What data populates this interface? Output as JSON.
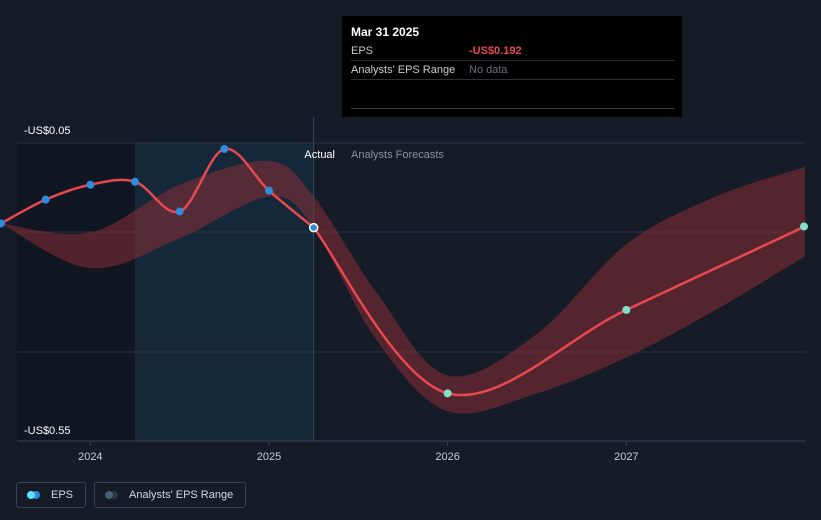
{
  "tooltip": {
    "date": "Mar 31 2025",
    "rows": [
      {
        "label": "EPS",
        "value": "-US$0.192"
      },
      {
        "label": "Analysts' EPS Range",
        "value": "No data"
      }
    ]
  },
  "legend": {
    "items": [
      {
        "label": "EPS",
        "color_a": "#5ee0ff",
        "color_b": "#2f8bdc"
      },
      {
        "label": "Analysts' EPS Range",
        "color_a": "#4a5f73",
        "color_b": "#2a3a4a"
      }
    ]
  },
  "chart_data": {
    "type": "line",
    "ylabel_top": "-US$0.05",
    "ylabel_bottom": "-US$0.55",
    "ylim": [
      -0.55,
      -0.05
    ],
    "xlim": [
      2023.5,
      2028.0
    ],
    "x_ticks": [
      {
        "label": "2024",
        "value": 2024.0
      },
      {
        "label": "2025",
        "value": 2025.0
      },
      {
        "label": "2026",
        "value": 2026.0
      },
      {
        "label": "2027",
        "value": 2027.0
      }
    ],
    "region_labels": {
      "actual": "Actual",
      "forecast": "Analysts Forecasts"
    },
    "actual_boundary": 2025.25,
    "highlight_range": [
      2024.25,
      2025.25
    ],
    "colors": {
      "line": "#e8484f",
      "band": "#8a2e36",
      "actual_point": "#2f8bdc",
      "forecast_point": "#7ee0c8",
      "highlight": "#14283a"
    },
    "series": [
      {
        "name": "EPS",
        "points": [
          {
            "x": 2023.5,
            "y": -0.185
          },
          {
            "x": 2023.75,
            "y": -0.145
          },
          {
            "x": 2024.0,
            "y": -0.12
          },
          {
            "x": 2024.25,
            "y": -0.115
          },
          {
            "x": 2024.5,
            "y": -0.165
          },
          {
            "x": 2024.75,
            "y": -0.06
          },
          {
            "x": 2025.0,
            "y": -0.13
          },
          {
            "x": 2025.25,
            "y": -0.192
          }
        ]
      },
      {
        "name": "EPS forecast",
        "points": [
          {
            "x": 2025.25,
            "y": -0.192
          },
          {
            "x": 2026.0,
            "y": -0.47
          },
          {
            "x": 2027.0,
            "y": -0.33
          },
          {
            "x": 2028.0,
            "y": -0.19
          }
        ]
      }
    ],
    "band": [
      {
        "x": 2023.5,
        "low": -0.185,
        "high": -0.185
      },
      {
        "x": 2024.0,
        "low": -0.26,
        "high": -0.2
      },
      {
        "x": 2024.5,
        "low": -0.21,
        "high": -0.12
      },
      {
        "x": 2025.0,
        "low": -0.14,
        "high": -0.08
      },
      {
        "x": 2025.25,
        "low": -0.192,
        "high": -0.14
      },
      {
        "x": 2025.6,
        "low": -0.38,
        "high": -0.3
      },
      {
        "x": 2026.0,
        "low": -0.5,
        "high": -0.44
      },
      {
        "x": 2026.5,
        "low": -0.47,
        "high": -0.37
      },
      {
        "x": 2027.0,
        "low": -0.41,
        "high": -0.22
      },
      {
        "x": 2027.5,
        "low": -0.33,
        "high": -0.14
      },
      {
        "x": 2028.0,
        "low": -0.24,
        "high": -0.09
      }
    ]
  }
}
